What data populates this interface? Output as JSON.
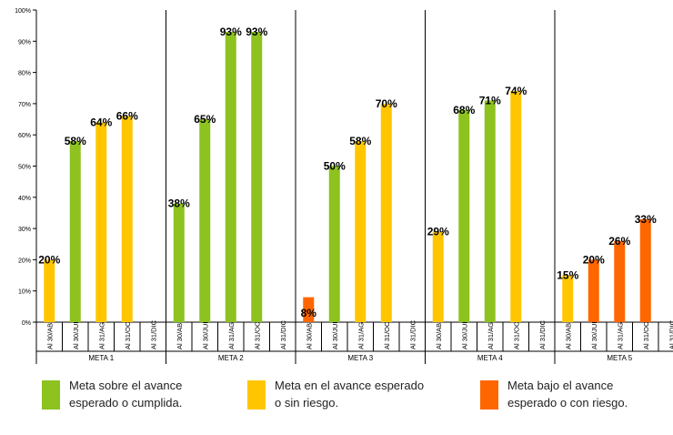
{
  "chart_data": {
    "type": "bar",
    "ylim": [
      0,
      100
    ],
    "ytick_labels": [
      "0%",
      "10%",
      "20%",
      "30%",
      "40%",
      "50%",
      "60%",
      "70%",
      "80%",
      "90%",
      "100%"
    ],
    "category_labels": [
      "Al 30/ABR",
      "Al 30/JUN",
      "Al 31/AGO",
      "Al 31/OCT",
      "Al 31/DIC"
    ],
    "groups": [
      {
        "name": "META 1",
        "bars": [
          {
            "value": 20,
            "label": "20%",
            "status": "yellow"
          },
          {
            "value": 58,
            "label": "58%",
            "status": "green"
          },
          {
            "value": 64,
            "label": "64%",
            "status": "yellow"
          },
          {
            "value": 66,
            "label": "66%",
            "status": "yellow"
          },
          {
            "value": null,
            "label": "",
            "status": ""
          }
        ]
      },
      {
        "name": "META 2",
        "bars": [
          {
            "value": 38,
            "label": "38%",
            "status": "green"
          },
          {
            "value": 65,
            "label": "65%",
            "status": "green"
          },
          {
            "value": 93,
            "label": "93%",
            "status": "green"
          },
          {
            "value": 93,
            "label": "93%",
            "status": "green"
          },
          {
            "value": null,
            "label": "",
            "status": ""
          }
        ]
      },
      {
        "name": "META 3",
        "bars": [
          {
            "value": 8,
            "label": "8%",
            "status": "orange"
          },
          {
            "value": 50,
            "label": "50%",
            "status": "green"
          },
          {
            "value": 58,
            "label": "58%",
            "status": "yellow"
          },
          {
            "value": 70,
            "label": "70%",
            "status": "yellow"
          },
          {
            "value": null,
            "label": "",
            "status": ""
          }
        ]
      },
      {
        "name": "META 4",
        "bars": [
          {
            "value": 29,
            "label": "29%",
            "status": "yellow"
          },
          {
            "value": 68,
            "label": "68%",
            "status": "green"
          },
          {
            "value": 71,
            "label": "71%",
            "status": "green"
          },
          {
            "value": 74,
            "label": "74%",
            "status": "yellow"
          },
          {
            "value": null,
            "label": "",
            "status": ""
          }
        ]
      },
      {
        "name": "META 5",
        "bars": [
          {
            "value": 15,
            "label": "15%",
            "status": "yellow"
          },
          {
            "value": 20,
            "label": "20%",
            "status": "orange"
          },
          {
            "value": 26,
            "label": "26%",
            "status": "orange"
          },
          {
            "value": 33,
            "label": "33%",
            "status": "orange"
          },
          {
            "value": null,
            "label": "",
            "status": ""
          }
        ]
      }
    ],
    "colors": {
      "green": "#8DC21F",
      "yellow": "#FFC600",
      "orange": "#FF6600"
    },
    "grid": false,
    "legend_position": "bottom"
  },
  "legend": [
    {
      "status": "green",
      "text": "Meta sobre el avance\nesperado o cumplida."
    },
    {
      "status": "yellow",
      "text": "Meta en el avance esperado\no sin riesgo."
    },
    {
      "status": "orange",
      "text": "Meta bajo el avance\nesperado o con riesgo."
    }
  ]
}
